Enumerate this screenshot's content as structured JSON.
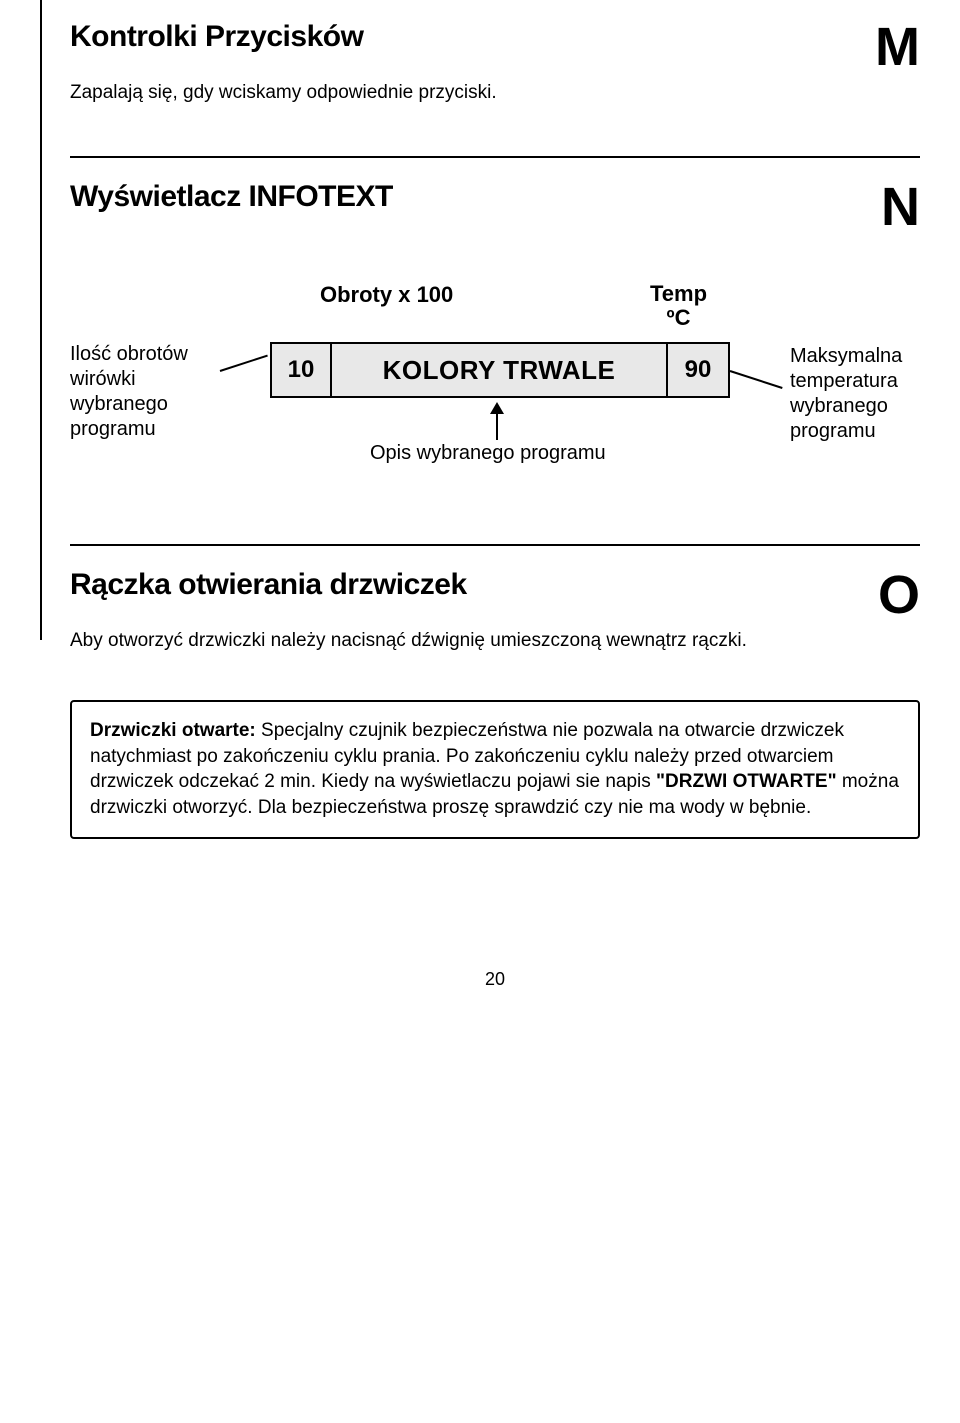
{
  "section_m": {
    "title": "Kontrolki Przycisków",
    "letter": "M",
    "sub": "Zapalają się, gdy wciskamy odpowiednie przyciski."
  },
  "section_n": {
    "title": "Wyświetlacz INFOTEXT",
    "letter": "N",
    "label_left": "Ilość obrotów wirówki wybranego programu",
    "label_obroty": "Obroty x 100",
    "label_temp_1": "Temp",
    "label_temp_2": "ºC",
    "display": {
      "spin": "10",
      "text": "KOLORY TRWALE",
      "temp": "90"
    },
    "label_opis": "Opis wybranego programu",
    "label_max": "Maksymalna temperatura wybranego programu"
  },
  "section_o": {
    "title": "Rączka otwierania drzwiczek",
    "letter": "O",
    "sub": "Aby otworzyć drzwiczki należy nacisnąć dźwignię umieszczoną wewnątrz rączki."
  },
  "note": {
    "bold": "Drzwiczki otwarte:",
    "t1": " Specjalny czujnik bezpieczeństwa nie pozwala na otwarcie drzwiczek natychmiast po zakończeniu cyklu prania. Po zakończeniu cyklu należy przed otwarciem drzwiczek odczekać 2 min. Kiedy na wyświetlaczu pojawi sie napis ",
    "bold2": "\"DRZWI OTWARTE\"",
    "t2": " można drzwiczki otworzyć. Dla bezpieczeństwa proszę sprawdzić czy nie ma wody w bębnie."
  },
  "page": "20",
  "colors": {
    "display_bg": "#e8e8e8",
    "text": "#000000",
    "page_bg": "#ffffff"
  },
  "fonts": {
    "body_size": 19,
    "title_size": 30,
    "big_letter_size": 54,
    "display_text_size": 26
  }
}
